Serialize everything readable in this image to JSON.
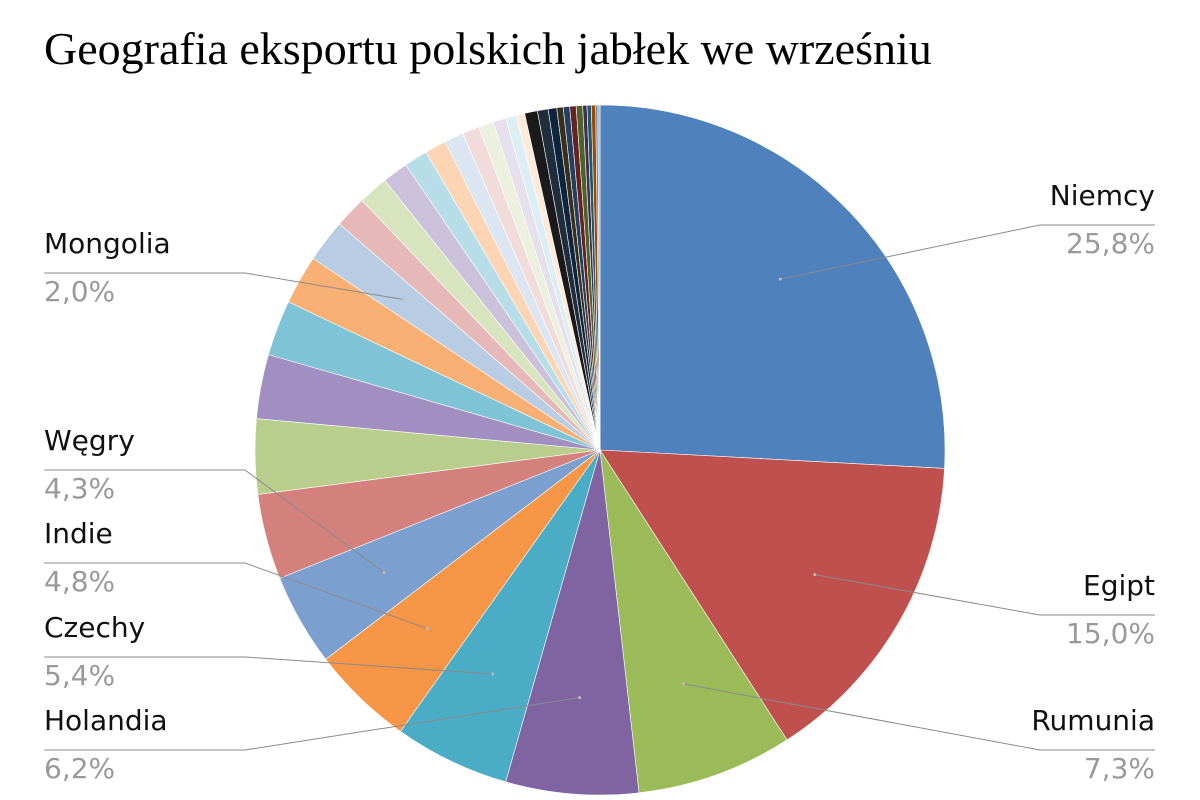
{
  "chart_data": {
    "type": "pie",
    "title": "Geografia eksportu polskich jabłek we wrześniu",
    "categories": [
      "Niemcy",
      "Egipt",
      "Rumunia",
      "Holandia",
      "Czechy",
      "Indie",
      "Węgry",
      null,
      null,
      null,
      null,
      null,
      "Mongolia",
      null,
      null,
      null,
      null,
      null,
      null,
      null,
      null,
      null,
      null,
      null,
      null,
      null,
      null,
      null,
      null,
      null,
      null,
      null,
      null,
      null,
      null,
      null
    ],
    "values": [
      25.8,
      15.0,
      7.3,
      6.2,
      5.4,
      4.8,
      4.3,
      4.0,
      3.5,
      3.0,
      2.6,
      2.3,
      2.0,
      1.5,
      1.4,
      1.2,
      1.1,
      1.0,
      0.9,
      0.8,
      0.7,
      0.6,
      0.5,
      0.4,
      0.6,
      0.5,
      0.4,
      0.3,
      0.3,
      0.3,
      0.3,
      0.2,
      0.2,
      0.2,
      0.1,
      0.1
    ],
    "value_labels": [
      "25,8%",
      "15,0%",
      "7,3%",
      "6,2%",
      "5,4%",
      "4,8%",
      "4,3%",
      null,
      null,
      null,
      null,
      null,
      "2,0%",
      null,
      null,
      null,
      null,
      null,
      null,
      null,
      null,
      null,
      null,
      null,
      null,
      null,
      null,
      null,
      null,
      null,
      null,
      null,
      null,
      null,
      null,
      null
    ],
    "colors": [
      "#4f81bd",
      "#c0504d",
      "#9bbb59",
      "#8064a2",
      "#4bacc6",
      "#f79646",
      "#7ba0d0",
      "#d4807d",
      "#b9cd8c",
      "#a08fc0",
      "#7ec4d6",
      "#f9b074",
      "#b8cce4",
      "#e6b9b8",
      "#d7e4bd",
      "#ccc1da",
      "#b7dee8",
      "#fcd5b5",
      "#dce6f2",
      "#f2dcdb",
      "#ebf1de",
      "#e6e0ec",
      "#dbeef4",
      "#fdeada",
      "#1a1a1a",
      "#1f2d3d",
      "#0f243e",
      "#3a2f1a",
      "#243f60",
      "#632523",
      "#4f6228",
      "#3f3151",
      "#215968",
      "#984807",
      "#7f7f7f",
      "#95b3d7"
    ]
  }
}
